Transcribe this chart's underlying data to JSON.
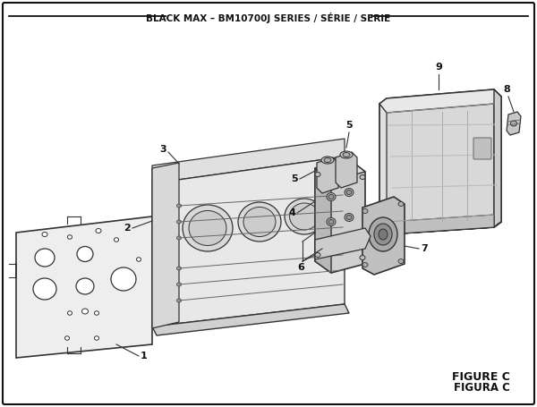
{
  "title": "BLACK MAX – BM10700J SERIES / SÉRIE / SERIE",
  "figure_label": "FIGURE C",
  "figure_label2": "FIGURA C",
  "bg_color": "#ffffff",
  "border_color": "#111111",
  "text_color": "#111111",
  "line_color": "#333333",
  "part_edge": "#333333",
  "part_fill_light": "#e8e8e8",
  "part_fill_mid": "#d0d0d0",
  "part_fill_dark": "#b8b8b8"
}
